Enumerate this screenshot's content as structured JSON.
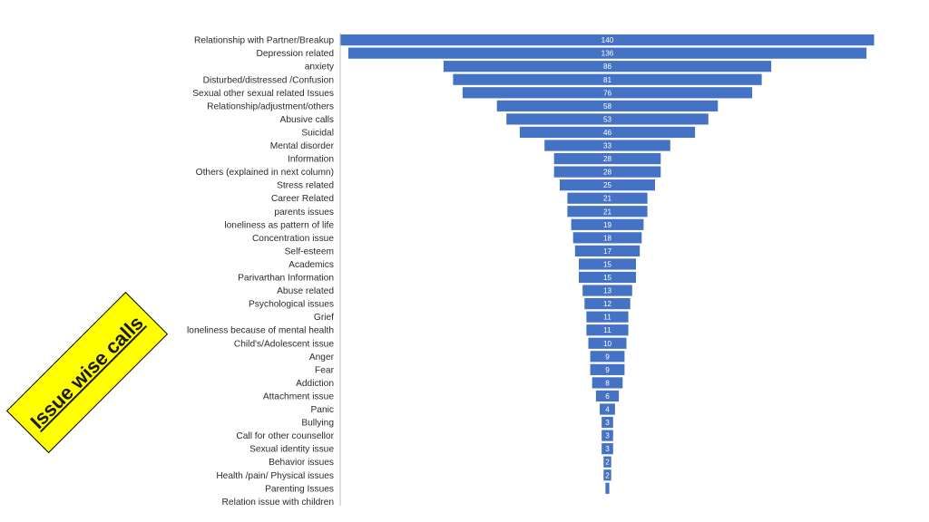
{
  "badge": {
    "text": "Issue wise calls",
    "background": "#ffff00"
  },
  "chart_data": {
    "type": "bar",
    "orientation": "horizontal-funnel",
    "bar_color": "#4472c4",
    "title": "",
    "xlabel": "",
    "ylabel": "",
    "grid": false,
    "legend": "none",
    "categories": [
      "Relationship with Partner/Breakup",
      "Depression related",
      "anxiety",
      "Disturbed/distressed /Confusion",
      "Sexual other sexual  related Issues",
      "Relationship/adjustment/others",
      "Abusive calls",
      "Suicidal",
      "Mental disorder",
      "Information",
      "Others (explained in next column)",
      "Stress related",
      "Career Related",
      "parents issues",
      "loneliness as pattern of life",
      "Concentration issue",
      "Self-esteem",
      "Academics",
      "Parivarthan Information",
      "Abuse related",
      "Psychological issues",
      "Grief",
      "loneliness because of mental health",
      "Child's/Adolescent  issue",
      "Anger",
      "Fear",
      "Addiction",
      "Attachment issue",
      "Panic",
      "Bullying",
      "Call for other counsellor",
      "Sexual identity issue",
      "Behavior issues",
      "Health /pain/ Physical issues",
      "Parenting Issues",
      "Relation issue with children"
    ],
    "values": [
      140,
      136,
      86,
      81,
      76,
      58,
      53,
      46,
      33,
      28,
      28,
      25,
      21,
      21,
      19,
      18,
      17,
      15,
      15,
      13,
      12,
      11,
      11,
      10,
      9,
      9,
      8,
      6,
      4,
      3,
      3,
      3,
      2,
      2,
      1,
      0
    ],
    "data_labels": [
      "140",
      "136",
      "86",
      "81",
      "76",
      "58",
      "53",
      "46",
      "33",
      "28",
      "28",
      "25",
      "21",
      "21",
      "19",
      "18",
      "17",
      "15",
      "15",
      "13",
      "12",
      "11",
      "11",
      "10",
      "9",
      "9",
      "8",
      "6",
      "4",
      "3",
      "3",
      "3",
      "2",
      "2",
      "",
      ""
    ]
  }
}
